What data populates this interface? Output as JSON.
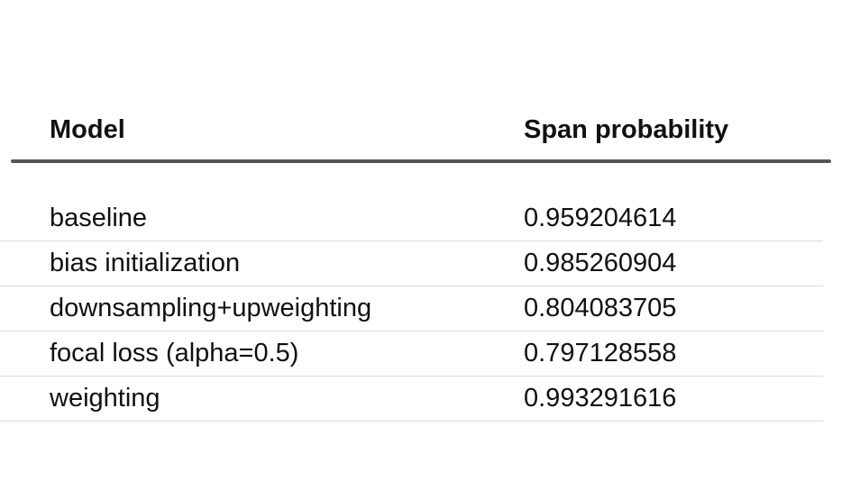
{
  "table": {
    "headers": {
      "model": "Model",
      "span_probability": "Span probability"
    },
    "rows": [
      {
        "model": "baseline",
        "span_probability": "0.959204614"
      },
      {
        "model": "bias initialization",
        "span_probability": "0.985260904"
      },
      {
        "model": "downsampling+upweighting",
        "span_probability": "0.804083705"
      },
      {
        "model": "focal loss (alpha=0.5)",
        "span_probability": "0.797128558"
      },
      {
        "model": "weighting",
        "span_probability": "0.993291616"
      }
    ]
  }
}
